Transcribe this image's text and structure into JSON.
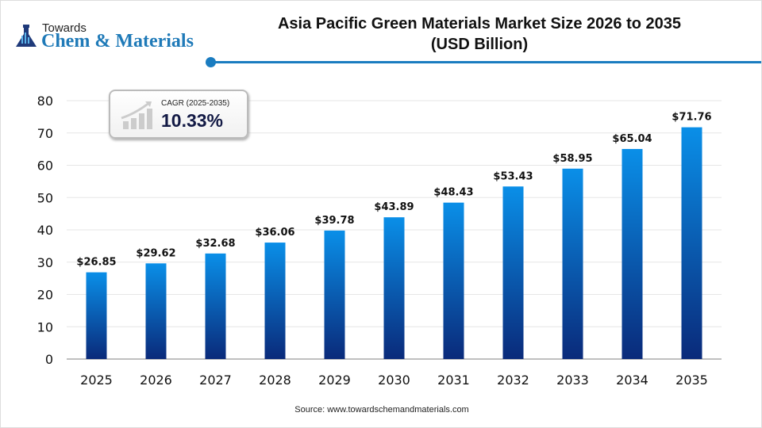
{
  "brand": {
    "line1": "Towards",
    "line2": "Chem & Materials"
  },
  "cagr": {
    "label": "CAGR (2025-2035)",
    "value": "10.33%"
  },
  "source": "Source: www.towardschemandmaterials.com",
  "chart_data": {
    "type": "bar",
    "title": "Asia Pacific Green Materials Market Size 2026 to 2035",
    "subtitle": "(USD Billion)",
    "categories": [
      "2025",
      "2026",
      "2027",
      "2028",
      "2029",
      "2030",
      "2031",
      "2032",
      "2033",
      "2034",
      "2035"
    ],
    "values": [
      26.85,
      29.62,
      32.68,
      36.06,
      39.78,
      43.89,
      48.43,
      53.43,
      58.95,
      65.04,
      71.76
    ],
    "data_labels": [
      "$26.85",
      "$29.62",
      "$32.68",
      "$36.06",
      "$39.78",
      "$43.89",
      "$48.43",
      "$53.43",
      "$58.95",
      "$65.04",
      "$71.76"
    ],
    "ylim": [
      0,
      80
    ],
    "yticks": [
      0,
      10,
      20,
      30,
      40,
      50,
      60,
      70,
      80
    ],
    "grid": true,
    "colors": {
      "bar_top": "#0a8fe8",
      "bar_bottom": "#0a2a7a",
      "accent": "#1a7cc0"
    }
  }
}
